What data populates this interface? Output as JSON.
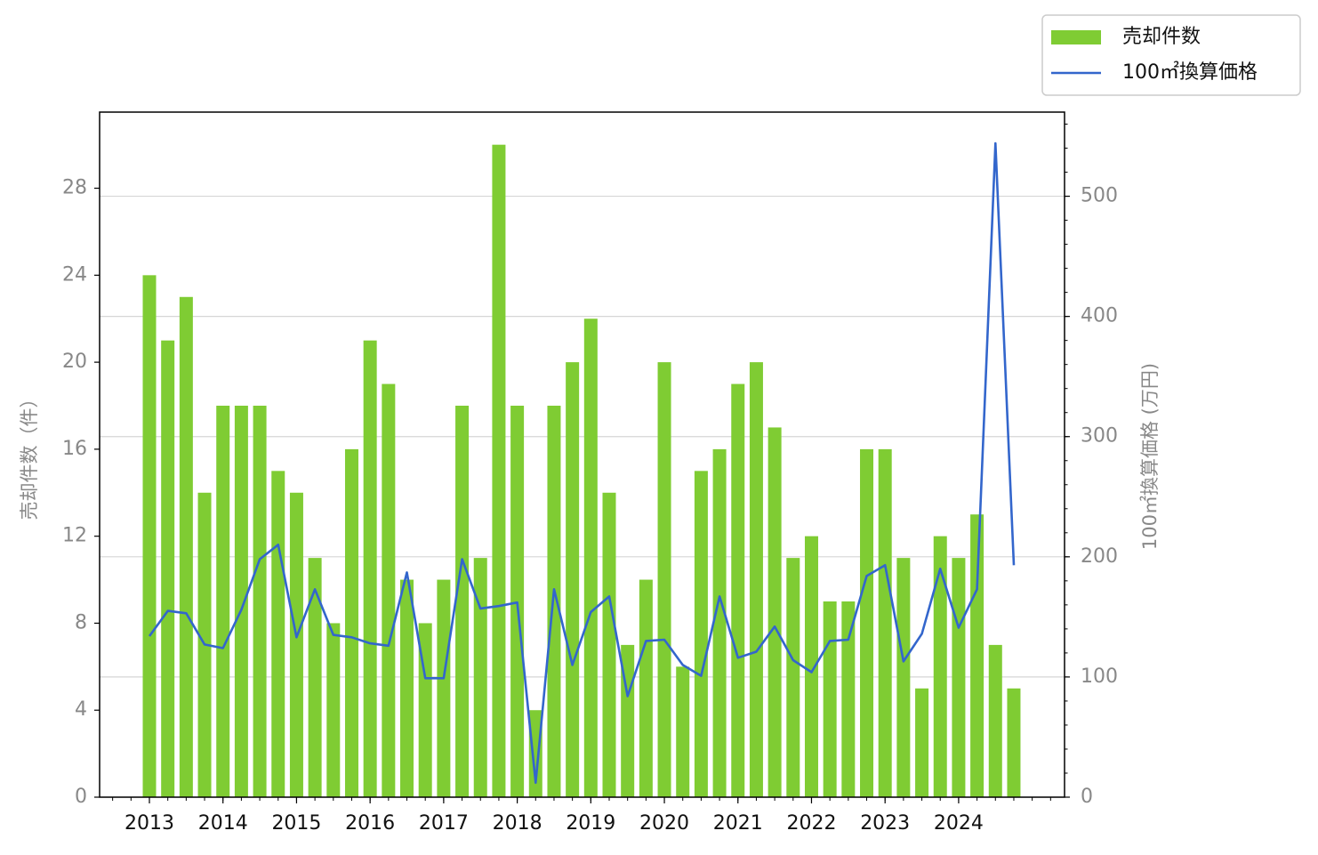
{
  "chart_data": {
    "type": "bar_line",
    "categories": [
      "2013",
      null,
      null,
      null,
      "2014",
      null,
      null,
      null,
      "2015",
      null,
      null,
      null,
      "2016",
      null,
      null,
      null,
      "2017",
      null,
      null,
      null,
      "2018",
      null,
      null,
      null,
      "2019",
      null,
      null,
      null,
      "2020",
      null,
      null,
      null,
      "2021",
      null,
      null,
      null,
      "2022",
      null,
      null,
      null,
      "2023",
      null,
      null,
      null,
      "2024",
      null,
      null,
      null
    ],
    "series": [
      {
        "name": "売却件数",
        "type": "bar",
        "color": "#7fcc33",
        "values": [
          24,
          21,
          23,
          14,
          18,
          18,
          18,
          15,
          14,
          11,
          8,
          16,
          21,
          19,
          10,
          8,
          10,
          18,
          11,
          30,
          18,
          4,
          18,
          20,
          22,
          14,
          7,
          10,
          20,
          6,
          15,
          16,
          19,
          20,
          17,
          11,
          12,
          9,
          9,
          16,
          16,
          11,
          5,
          12,
          11,
          13,
          7,
          5
        ]
      },
      {
        "name": "100㎡換算価格",
        "type": "line",
        "axis": "y2",
        "color": "#3366cc",
        "values": [
          134,
          155,
          153,
          127,
          124,
          156,
          198,
          210,
          133,
          173,
          135,
          133,
          128,
          126,
          187,
          99,
          99,
          198,
          157,
          159,
          162,
          12,
          173,
          110,
          154,
          167,
          84,
          130,
          131,
          110,
          101,
          167,
          116,
          121,
          142,
          114,
          104,
          130,
          131,
          184,
          193,
          113,
          136,
          190,
          141,
          173,
          544,
          193
        ]
      }
    ],
    "y_label": "売却件数（件）",
    "y2_label": "100㎡換算価格 (万円)",
    "ylim": [
      0,
      31.5
    ],
    "yticks": [
      0,
      4,
      8,
      12,
      16,
      20,
      24,
      28
    ],
    "y2lim": [
      0,
      570
    ],
    "y2ticks": [
      0,
      100,
      200,
      300,
      400,
      500
    ],
    "grid": "y2",
    "legend": "upper right"
  }
}
